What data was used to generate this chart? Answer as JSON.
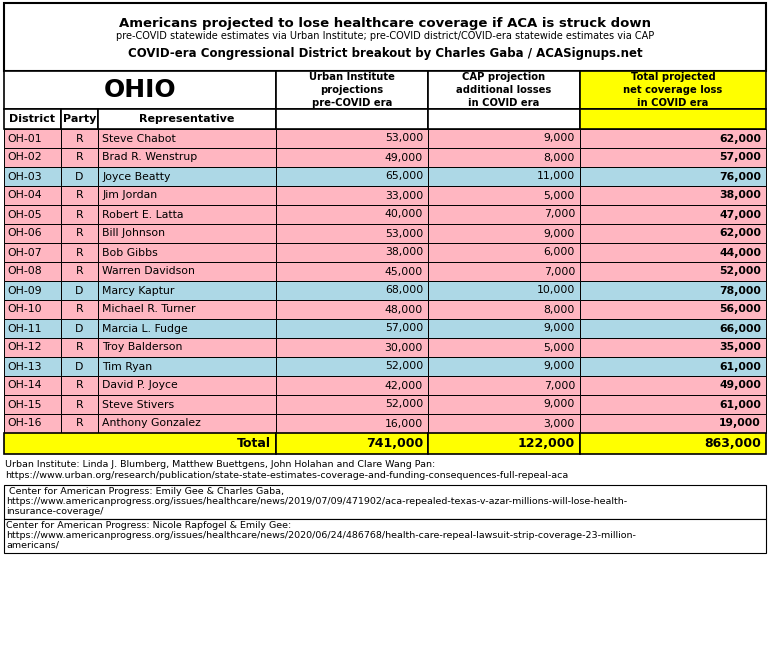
{
  "title_line1": "Americans projected to lose healthcare coverage if ACA is struck down",
  "title_line2": "pre-COVID statewide estimates via Urban Institute; pre-COVID district/COVID-era statewide estimates via CAP",
  "title_line3": "COVID-era Congressional District breakout by Charles Gaba / ACASignups.net",
  "state": "OHIO",
  "rows": [
    [
      "OH-01",
      "R",
      "Steve Chabot",
      "53,000",
      "9,000",
      "62,000"
    ],
    [
      "OH-02",
      "R",
      "Brad R. Wenstrup",
      "49,000",
      "8,000",
      "57,000"
    ],
    [
      "OH-03",
      "D",
      "Joyce Beatty",
      "65,000",
      "11,000",
      "76,000"
    ],
    [
      "OH-04",
      "R",
      "Jim Jordan",
      "33,000",
      "5,000",
      "38,000"
    ],
    [
      "OH-05",
      "R",
      "Robert E. Latta",
      "40,000",
      "7,000",
      "47,000"
    ],
    [
      "OH-06",
      "R",
      "Bill Johnson",
      "53,000",
      "9,000",
      "62,000"
    ],
    [
      "OH-07",
      "R",
      "Bob Gibbs",
      "38,000",
      "6,000",
      "44,000"
    ],
    [
      "OH-08",
      "R",
      "Warren Davidson",
      "45,000",
      "7,000",
      "52,000"
    ],
    [
      "OH-09",
      "D",
      "Marcy Kaptur",
      "68,000",
      "10,000",
      "78,000"
    ],
    [
      "OH-10",
      "R",
      "Michael R. Turner",
      "48,000",
      "8,000",
      "56,000"
    ],
    [
      "OH-11",
      "D",
      "Marcia L. Fudge",
      "57,000",
      "9,000",
      "66,000"
    ],
    [
      "OH-12",
      "R",
      "Troy Balderson",
      "30,000",
      "5,000",
      "35,000"
    ],
    [
      "OH-13",
      "D",
      "Tim Ryan",
      "52,000",
      "9,000",
      "61,000"
    ],
    [
      "OH-14",
      "R",
      "David P. Joyce",
      "42,000",
      "7,000",
      "49,000"
    ],
    [
      "OH-15",
      "R",
      "Steve Stivers",
      "52,000",
      "9,000",
      "61,000"
    ],
    [
      "OH-16",
      "R",
      "Anthony Gonzalez",
      "16,000",
      "3,000",
      "19,000"
    ]
  ],
  "total_row": [
    "",
    "",
    "Total",
    "741,000",
    "122,000",
    "863,000"
  ],
  "color_R": "#FFB6C1",
  "color_D": "#ADD8E6",
  "color_yellow": "#FFFF00",
  "footnote1_line1": "Urban Institute: Linda J. Blumberg, Matthew Buettgens, John Holahan and Clare Wang Pan:",
  "footnote1_line2": "https://www.urban.org/research/publication/state-state-estimates-coverage-and-funding-consequences-full-repeal-aca",
  "footnote2_line1": " Center for American Progress: Emily Gee & Charles Gaba,",
  "footnote2_line2": "https://www.americanprogress.org/issues/healthcare/news/2019/07/09/471902/aca-repealed-texas-v-azar-millions-will-lose-health-",
  "footnote2_line3": "insurance-coverage/",
  "footnote3_line1": "Center for American Progress: Nicole Rapfogel & Emily Gee:",
  "footnote3_line2": "https://www.americanprogress.org/issues/healthcare/news/2020/06/24/486768/health-care-repeal-lawsuit-strip-coverage-23-million-",
  "footnote3_line3": "americans/"
}
